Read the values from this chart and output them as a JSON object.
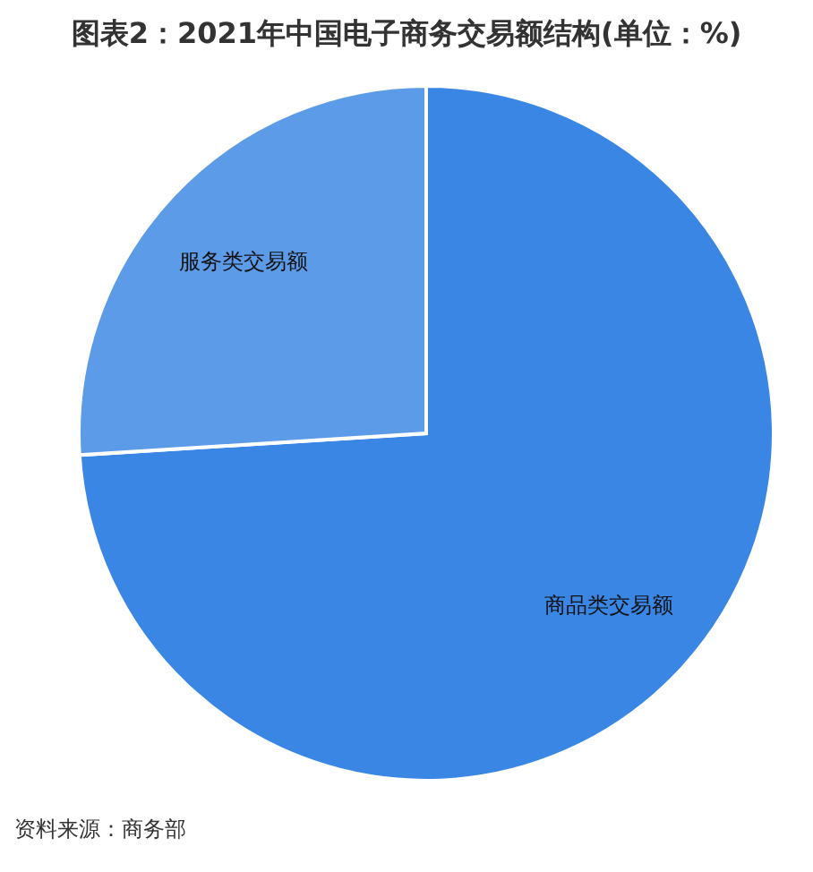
{
  "chart_data": {
    "type": "pie",
    "title": "图表2：2021年中国电子商务交易额结构(单位：%)",
    "categories": [
      "商品类交易额",
      "服务类交易额"
    ],
    "values": [
      74,
      26
    ],
    "colors": [
      "#3a86e4",
      "#5c9be8"
    ],
    "annotations": [
      "资料来源：商务部"
    ]
  }
}
